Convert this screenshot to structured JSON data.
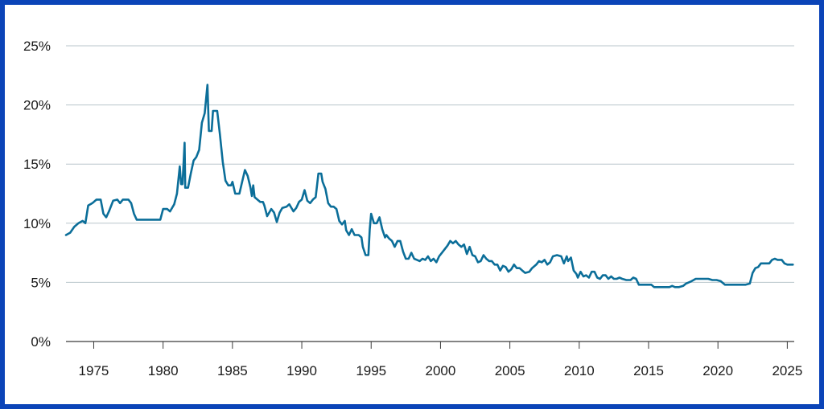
{
  "colors": {
    "border": "#0b44b8",
    "line": "#0b6e99",
    "grid": "#b9c6cb",
    "axis": "#3a3a3a"
  },
  "chart_data": {
    "type": "line",
    "title": "",
    "xlabel": "",
    "ylabel": "",
    "grid": true,
    "xlim": [
      1973,
      2025.5
    ],
    "ylim": [
      0,
      25
    ],
    "x_ticks": [
      1975,
      1980,
      1985,
      1990,
      1995,
      2000,
      2005,
      2010,
      2015,
      2020,
      2025
    ],
    "x_tick_labels": [
      "1975",
      "1980",
      "1985",
      "1990",
      "1995",
      "2000",
      "2005",
      "2010",
      "2015",
      "2020",
      "2025"
    ],
    "y_ticks": [
      0,
      5,
      10,
      15,
      20,
      25
    ],
    "y_tick_labels": [
      "0%",
      "5%",
      "10%",
      "15%",
      "20%",
      "25%"
    ],
    "series": [
      {
        "points": [
          [
            1973.0,
            9.0
          ],
          [
            1973.3,
            9.2
          ],
          [
            1973.6,
            9.7
          ],
          [
            1973.9,
            10.0
          ],
          [
            1974.2,
            10.2
          ],
          [
            1974.4,
            10.0
          ],
          [
            1974.6,
            11.5
          ],
          [
            1974.9,
            11.7
          ],
          [
            1975.2,
            12.0
          ],
          [
            1975.5,
            12.0
          ],
          [
            1975.7,
            10.8
          ],
          [
            1975.9,
            10.5
          ],
          [
            1976.1,
            11.0
          ],
          [
            1976.4,
            11.9
          ],
          [
            1976.7,
            12.0
          ],
          [
            1976.9,
            11.7
          ],
          [
            1977.1,
            12.0
          ],
          [
            1977.5,
            12.0
          ],
          [
            1977.7,
            11.7
          ],
          [
            1977.9,
            10.8
          ],
          [
            1978.1,
            10.3
          ],
          [
            1978.5,
            10.3
          ],
          [
            1979.0,
            10.3
          ],
          [
            1979.5,
            10.3
          ],
          [
            1979.8,
            10.3
          ],
          [
            1980.0,
            11.2
          ],
          [
            1980.3,
            11.2
          ],
          [
            1980.5,
            11.0
          ],
          [
            1980.8,
            11.6
          ],
          [
            1981.0,
            12.5
          ],
          [
            1981.2,
            14.8
          ],
          [
            1981.3,
            13.3
          ],
          [
            1981.4,
            13.3
          ],
          [
            1981.55,
            16.8
          ],
          [
            1981.6,
            13.0
          ],
          [
            1981.8,
            13.0
          ],
          [
            1982.0,
            14.2
          ],
          [
            1982.2,
            15.3
          ],
          [
            1982.4,
            15.6
          ],
          [
            1982.6,
            16.2
          ],
          [
            1982.8,
            18.5
          ],
          [
            1983.0,
            19.3
          ],
          [
            1983.2,
            21.7
          ],
          [
            1983.3,
            17.8
          ],
          [
            1983.5,
            17.8
          ],
          [
            1983.6,
            19.5
          ],
          [
            1983.9,
            19.5
          ],
          [
            1984.1,
            17.5
          ],
          [
            1984.3,
            15.2
          ],
          [
            1984.5,
            13.6
          ],
          [
            1984.7,
            13.2
          ],
          [
            1984.9,
            13.2
          ],
          [
            1985.0,
            13.5
          ],
          [
            1985.2,
            12.5
          ],
          [
            1985.5,
            12.5
          ],
          [
            1985.7,
            13.5
          ],
          [
            1985.9,
            14.5
          ],
          [
            1986.1,
            14.0
          ],
          [
            1986.3,
            13.0
          ],
          [
            1986.4,
            12.3
          ],
          [
            1986.5,
            13.2
          ],
          [
            1986.6,
            12.2
          ],
          [
            1986.8,
            12.0
          ],
          [
            1987.0,
            11.8
          ],
          [
            1987.2,
            11.8
          ],
          [
            1987.3,
            11.5
          ],
          [
            1987.5,
            10.6
          ],
          [
            1987.8,
            11.2
          ],
          [
            1988.0,
            10.9
          ],
          [
            1988.2,
            10.1
          ],
          [
            1988.4,
            10.9
          ],
          [
            1988.6,
            11.3
          ],
          [
            1988.9,
            11.4
          ],
          [
            1989.1,
            11.6
          ],
          [
            1989.4,
            11.0
          ],
          [
            1989.6,
            11.3
          ],
          [
            1989.8,
            11.8
          ],
          [
            1990.0,
            12.0
          ],
          [
            1990.2,
            12.8
          ],
          [
            1990.4,
            11.9
          ],
          [
            1990.6,
            11.7
          ],
          [
            1990.8,
            12.0
          ],
          [
            1991.0,
            12.2
          ],
          [
            1991.2,
            14.2
          ],
          [
            1991.4,
            14.2
          ],
          [
            1991.5,
            13.5
          ],
          [
            1991.7,
            12.9
          ],
          [
            1991.9,
            11.7
          ],
          [
            1992.1,
            11.4
          ],
          [
            1992.3,
            11.4
          ],
          [
            1992.5,
            11.2
          ],
          [
            1992.7,
            10.2
          ],
          [
            1992.9,
            9.9
          ],
          [
            1993.1,
            10.2
          ],
          [
            1993.2,
            9.4
          ],
          [
            1993.4,
            9.0
          ],
          [
            1993.6,
            9.5
          ],
          [
            1993.8,
            9.0
          ],
          [
            1994.1,
            9.0
          ],
          [
            1994.3,
            8.8
          ],
          [
            1994.4,
            8.0
          ],
          [
            1994.6,
            7.3
          ],
          [
            1994.8,
            7.3
          ],
          [
            1994.9,
            9.5
          ],
          [
            1995.0,
            10.8
          ],
          [
            1995.2,
            10.0
          ],
          [
            1995.4,
            10.0
          ],
          [
            1995.6,
            10.5
          ],
          [
            1995.8,
            9.5
          ],
          [
            1996.0,
            8.8
          ],
          [
            1996.1,
            9.0
          ],
          [
            1996.3,
            8.7
          ],
          [
            1996.5,
            8.5
          ],
          [
            1996.7,
            8.0
          ],
          [
            1996.9,
            8.5
          ],
          [
            1997.1,
            8.5
          ],
          [
            1997.3,
            7.6
          ],
          [
            1997.5,
            7.0
          ],
          [
            1997.7,
            7.0
          ],
          [
            1997.9,
            7.5
          ],
          [
            1998.1,
            7.0
          ],
          [
            1998.3,
            6.9
          ],
          [
            1998.5,
            6.8
          ],
          [
            1998.7,
            7.0
          ],
          [
            1998.9,
            6.9
          ],
          [
            1999.1,
            7.2
          ],
          [
            1999.3,
            6.8
          ],
          [
            1999.5,
            7.0
          ],
          [
            1999.7,
            6.7
          ],
          [
            1999.9,
            7.2
          ],
          [
            2000.1,
            7.5
          ],
          [
            2000.3,
            7.8
          ],
          [
            2000.5,
            8.1
          ],
          [
            2000.7,
            8.5
          ],
          [
            2000.9,
            8.3
          ],
          [
            2001.1,
            8.5
          ],
          [
            2001.3,
            8.2
          ],
          [
            2001.5,
            8.0
          ],
          [
            2001.7,
            8.2
          ],
          [
            2001.9,
            7.4
          ],
          [
            2002.1,
            8.0
          ],
          [
            2002.3,
            7.3
          ],
          [
            2002.5,
            7.2
          ],
          [
            2002.7,
            6.7
          ],
          [
            2002.9,
            6.8
          ],
          [
            2003.1,
            7.3
          ],
          [
            2003.3,
            7.0
          ],
          [
            2003.5,
            6.8
          ],
          [
            2003.7,
            6.8
          ],
          [
            2003.9,
            6.5
          ],
          [
            2004.1,
            6.5
          ],
          [
            2004.3,
            6.0
          ],
          [
            2004.5,
            6.4
          ],
          [
            2004.7,
            6.3
          ],
          [
            2004.9,
            5.9
          ],
          [
            2005.1,
            6.1
          ],
          [
            2005.3,
            6.5
          ],
          [
            2005.5,
            6.2
          ],
          [
            2005.7,
            6.2
          ],
          [
            2005.9,
            6.0
          ],
          [
            2006.1,
            5.8
          ],
          [
            2006.4,
            5.9
          ],
          [
            2006.6,
            6.2
          ],
          [
            2006.9,
            6.5
          ],
          [
            2007.1,
            6.8
          ],
          [
            2007.3,
            6.7
          ],
          [
            2007.5,
            6.9
          ],
          [
            2007.7,
            6.5
          ],
          [
            2007.9,
            6.7
          ],
          [
            2008.1,
            7.2
          ],
          [
            2008.4,
            7.3
          ],
          [
            2008.7,
            7.2
          ],
          [
            2008.9,
            6.6
          ],
          [
            2009.1,
            7.2
          ],
          [
            2009.2,
            6.8
          ],
          [
            2009.4,
            7.1
          ],
          [
            2009.6,
            6.0
          ],
          [
            2009.8,
            5.7
          ],
          [
            2009.9,
            5.4
          ],
          [
            2010.1,
            5.9
          ],
          [
            2010.3,
            5.5
          ],
          [
            2010.5,
            5.6
          ],
          [
            2010.7,
            5.4
          ],
          [
            2010.9,
            5.9
          ],
          [
            2011.1,
            5.9
          ],
          [
            2011.3,
            5.4
          ],
          [
            2011.5,
            5.3
          ],
          [
            2011.7,
            5.6
          ],
          [
            2011.9,
            5.6
          ],
          [
            2012.1,
            5.3
          ],
          [
            2012.3,
            5.5
          ],
          [
            2012.5,
            5.3
          ],
          [
            2012.7,
            5.3
          ],
          [
            2012.9,
            5.4
          ],
          [
            2013.1,
            5.3
          ],
          [
            2013.4,
            5.2
          ],
          [
            2013.7,
            5.2
          ],
          [
            2013.9,
            5.4
          ],
          [
            2014.1,
            5.3
          ],
          [
            2014.3,
            4.8
          ],
          [
            2014.6,
            4.8
          ],
          [
            2014.9,
            4.8
          ],
          [
            2015.2,
            4.8
          ],
          [
            2015.4,
            4.6
          ],
          [
            2015.8,
            4.6
          ],
          [
            2016.2,
            4.6
          ],
          [
            2016.5,
            4.6
          ],
          [
            2016.7,
            4.7
          ],
          [
            2016.9,
            4.6
          ],
          [
            2017.2,
            4.6
          ],
          [
            2017.5,
            4.7
          ],
          [
            2017.7,
            4.9
          ],
          [
            2017.9,
            5.0
          ],
          [
            2018.1,
            5.1
          ],
          [
            2018.4,
            5.3
          ],
          [
            2018.7,
            5.3
          ],
          [
            2019.0,
            5.3
          ],
          [
            2019.3,
            5.3
          ],
          [
            2019.6,
            5.2
          ],
          [
            2019.9,
            5.2
          ],
          [
            2020.2,
            5.1
          ],
          [
            2020.5,
            4.8
          ],
          [
            2020.8,
            4.8
          ],
          [
            2021.2,
            4.8
          ],
          [
            2021.6,
            4.8
          ],
          [
            2022.0,
            4.8
          ],
          [
            2022.3,
            4.9
          ],
          [
            2022.5,
            5.8
          ],
          [
            2022.7,
            6.2
          ],
          [
            2022.9,
            6.3
          ],
          [
            2023.1,
            6.6
          ],
          [
            2023.4,
            6.6
          ],
          [
            2023.7,
            6.6
          ],
          [
            2023.9,
            6.9
          ],
          [
            2024.1,
            7.0
          ],
          [
            2024.3,
            6.9
          ],
          [
            2024.6,
            6.9
          ],
          [
            2024.8,
            6.6
          ],
          [
            2025.0,
            6.5
          ],
          [
            2025.4,
            6.5
          ]
        ]
      }
    ]
  }
}
